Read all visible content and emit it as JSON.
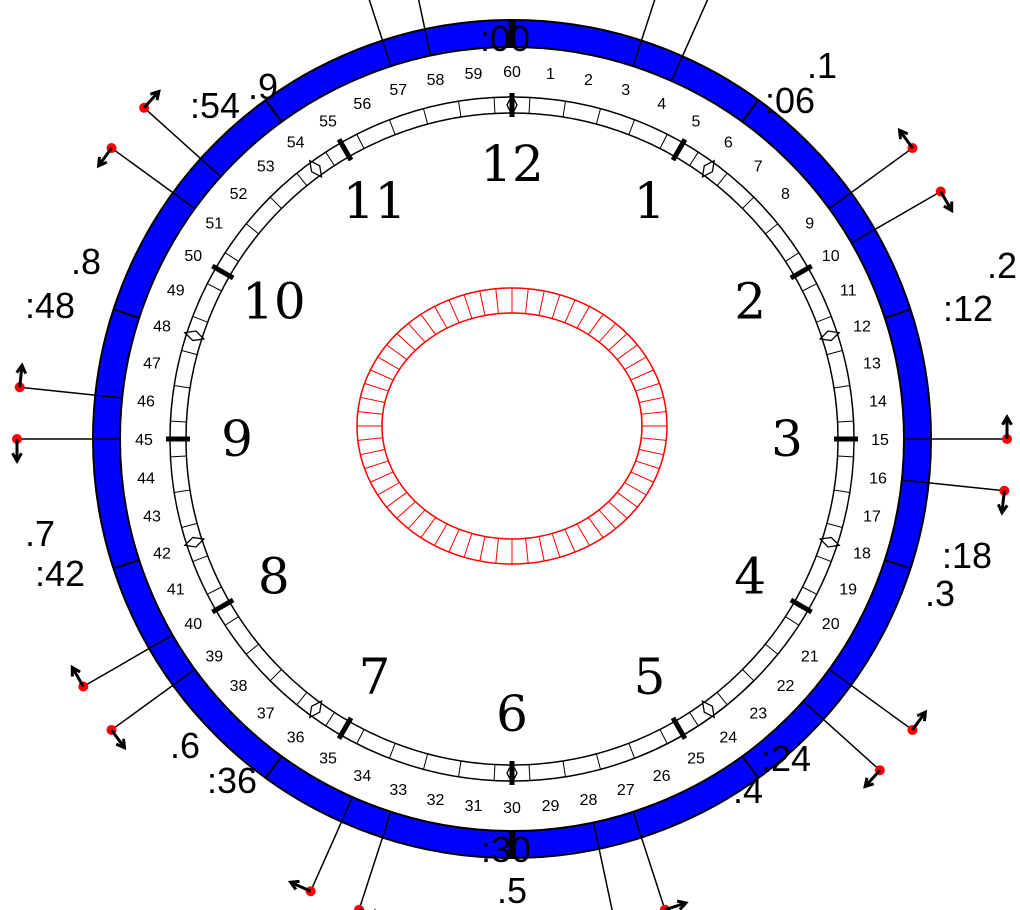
{
  "colors": {
    "ring": "#0000ff",
    "tick": "#000000",
    "inner_ring": "#ff0000",
    "dot": "#ff0000"
  },
  "labels": {
    "top": ":00",
    "bottom_minute": ":30",
    "bottom_fraction": ".5"
  },
  "outer_labels": [
    {
      "minute": ":06",
      "fraction": ".1"
    },
    {
      "minute": ":12",
      "fraction": ".2"
    },
    {
      "minute": ":18",
      "fraction": ".3"
    },
    {
      "minute": ":24",
      "fraction": ".4"
    },
    {
      "minute": ":36",
      "fraction": ".6"
    },
    {
      "minute": ":42",
      "fraction": ".7"
    },
    {
      "minute": ":48",
      "fraction": ".8"
    },
    {
      "minute": ":54",
      "fraction": ".9"
    }
  ],
  "hours": [
    "12",
    "1",
    "2",
    "3",
    "4",
    "5",
    "6",
    "7",
    "8",
    "9",
    "10",
    "11"
  ],
  "minutes": [
    "60",
    "1",
    "2",
    "3",
    "4",
    "5",
    "6",
    "7",
    "8",
    "9",
    "10",
    "11",
    "12",
    "13",
    "14",
    "15",
    "16",
    "17",
    "18",
    "19",
    "20",
    "21",
    "22",
    "23",
    "24",
    "25",
    "26",
    "27",
    "28",
    "29",
    "30",
    "31",
    "32",
    "33",
    "34",
    "35",
    "36",
    "37",
    "38",
    "39",
    "40",
    "41",
    "42",
    "43",
    "44",
    "45",
    "46",
    "47",
    "48",
    "49",
    "50",
    "51",
    "52",
    "53",
    "54",
    "55",
    "56",
    "57",
    "58",
    "59"
  ],
  "pointer_minutes": [
    3,
    4,
    9,
    10,
    15,
    16,
    21,
    22,
    27,
    28,
    33,
    34,
    39,
    40,
    45,
    46,
    51,
    52,
    57,
    58
  ],
  "inner_ring_segments": 60
}
